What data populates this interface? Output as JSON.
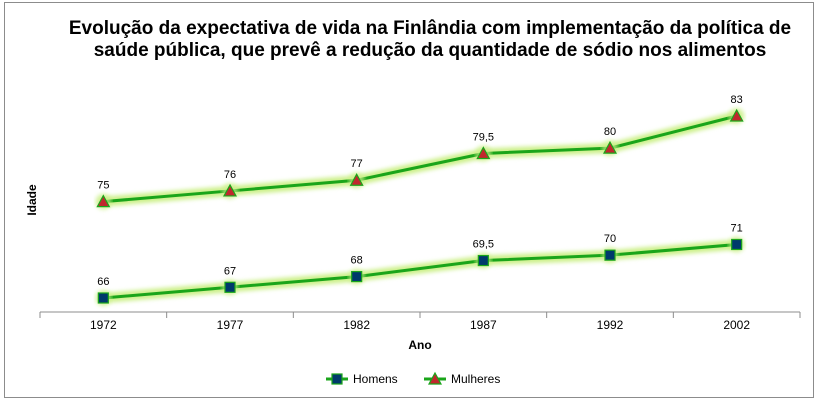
{
  "chart_data": {
    "type": "line",
    "title": "Evolução da expectativa de vida na Finlândia com implementação da política de saúde pública, que prevê a redução da quantidade de sódio nos alimentos",
    "xlabel": "Ano",
    "ylabel": "Idade",
    "categories": [
      "1972",
      "1977",
      "1982",
      "1987",
      "1992",
      "2002"
    ],
    "series": [
      {
        "name": "Homens",
        "values": [
          66,
          67,
          68,
          69.5,
          70,
          71
        ],
        "labels": [
          "66",
          "67",
          "68",
          "69,5",
          "70",
          "71"
        ],
        "line_color": "#1aa51a",
        "marker": "square",
        "marker_color": "#003a6b"
      },
      {
        "name": "Mulheres",
        "values": [
          75,
          76,
          77,
          79.5,
          80,
          83
        ],
        "labels": [
          "75",
          "76",
          "77",
          "79,5",
          "80",
          "83"
        ],
        "line_color": "#1aa51a",
        "marker": "triangle",
        "marker_color": "#c0282d"
      }
    ],
    "ylim": [
      65,
      85
    ],
    "grid": false,
    "legend_position": "bottom",
    "glow_color": "#ccf08a"
  }
}
